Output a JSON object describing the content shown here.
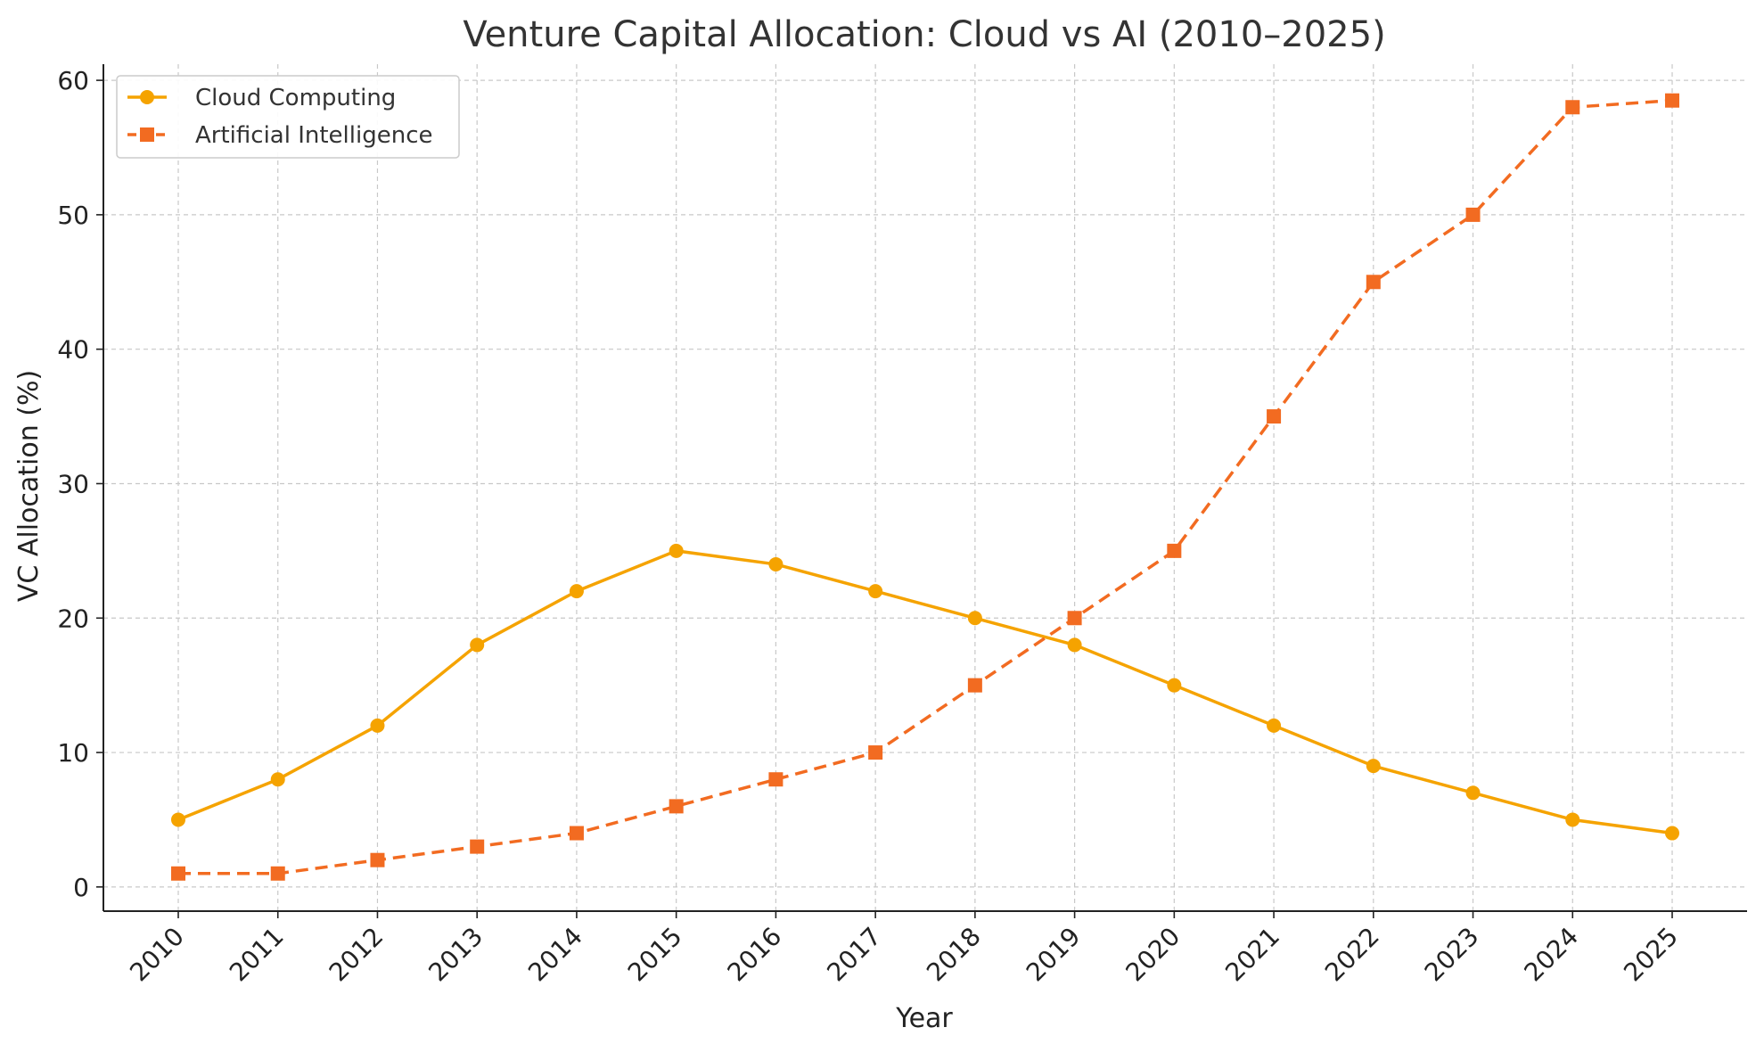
{
  "chart_data": {
    "type": "line",
    "title": "Venture Capital Allocation: Cloud vs AI (2010–2025)",
    "xlabel": "Year",
    "ylabel": "VC Allocation (%)",
    "categories": [
      "2010",
      "2011",
      "2012",
      "2013",
      "2014",
      "2015",
      "2016",
      "2017",
      "2018",
      "2019",
      "2020",
      "2021",
      "2022",
      "2023",
      "2024",
      "2025"
    ],
    "yticks": [
      0,
      10,
      20,
      30,
      40,
      50,
      60
    ],
    "ylim": [
      -1.8,
      61.2
    ],
    "grid": true,
    "legend_position": "top-left",
    "series": [
      {
        "name": "Cloud Computing",
        "color": "#F5A300",
        "line_style": "solid",
        "marker": "circle",
        "values": [
          5,
          8,
          12,
          18,
          22,
          25,
          24,
          22,
          20,
          18,
          15,
          12,
          9,
          7,
          5,
          4
        ]
      },
      {
        "name": "Artificial Intelligence",
        "color": "#F26B21",
        "line_style": "dashed",
        "marker": "square",
        "values": [
          1,
          1,
          2,
          3,
          4,
          6,
          8,
          10,
          15,
          20,
          25,
          35,
          45,
          50,
          58,
          58.5
        ]
      }
    ]
  }
}
